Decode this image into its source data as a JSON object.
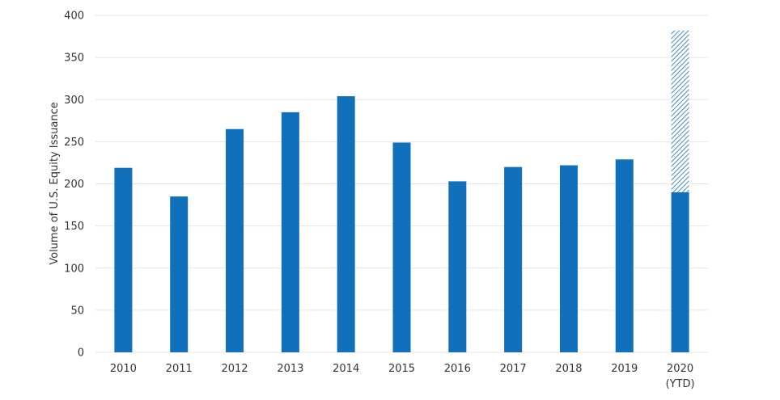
{
  "chart_data": {
    "type": "bar",
    "title": "",
    "xlabel": "",
    "ylabel": "Volume of U.S. Equity Issuance",
    "ylim": [
      0,
      400
    ],
    "yticks": [
      0,
      50,
      100,
      150,
      200,
      250,
      300,
      350,
      400
    ],
    "grid": true,
    "legend": "none",
    "categories": [
      "2010",
      "2011",
      "2012",
      "2013",
      "2014",
      "2015",
      "2016",
      "2017",
      "2018",
      "2019",
      "2020"
    ],
    "category_sublabels": [
      "",
      "",
      "",
      "",
      "",
      "",
      "",
      "",
      "",
      "",
      "(YTD)"
    ],
    "series": [
      {
        "values": [
          219,
          185,
          265,
          285,
          304,
          249,
          203,
          220,
          222,
          229,
          190
        ]
      },
      {
        "values": [
          0,
          0,
          0,
          0,
          0,
          0,
          0,
          0,
          0,
          0,
          192
        ],
        "pattern": "hatched"
      }
    ],
    "colors": {
      "bar": "#1070bb",
      "hatch": "#1070bb",
      "grid": "#e6e6e6",
      "text": "#333333"
    }
  }
}
